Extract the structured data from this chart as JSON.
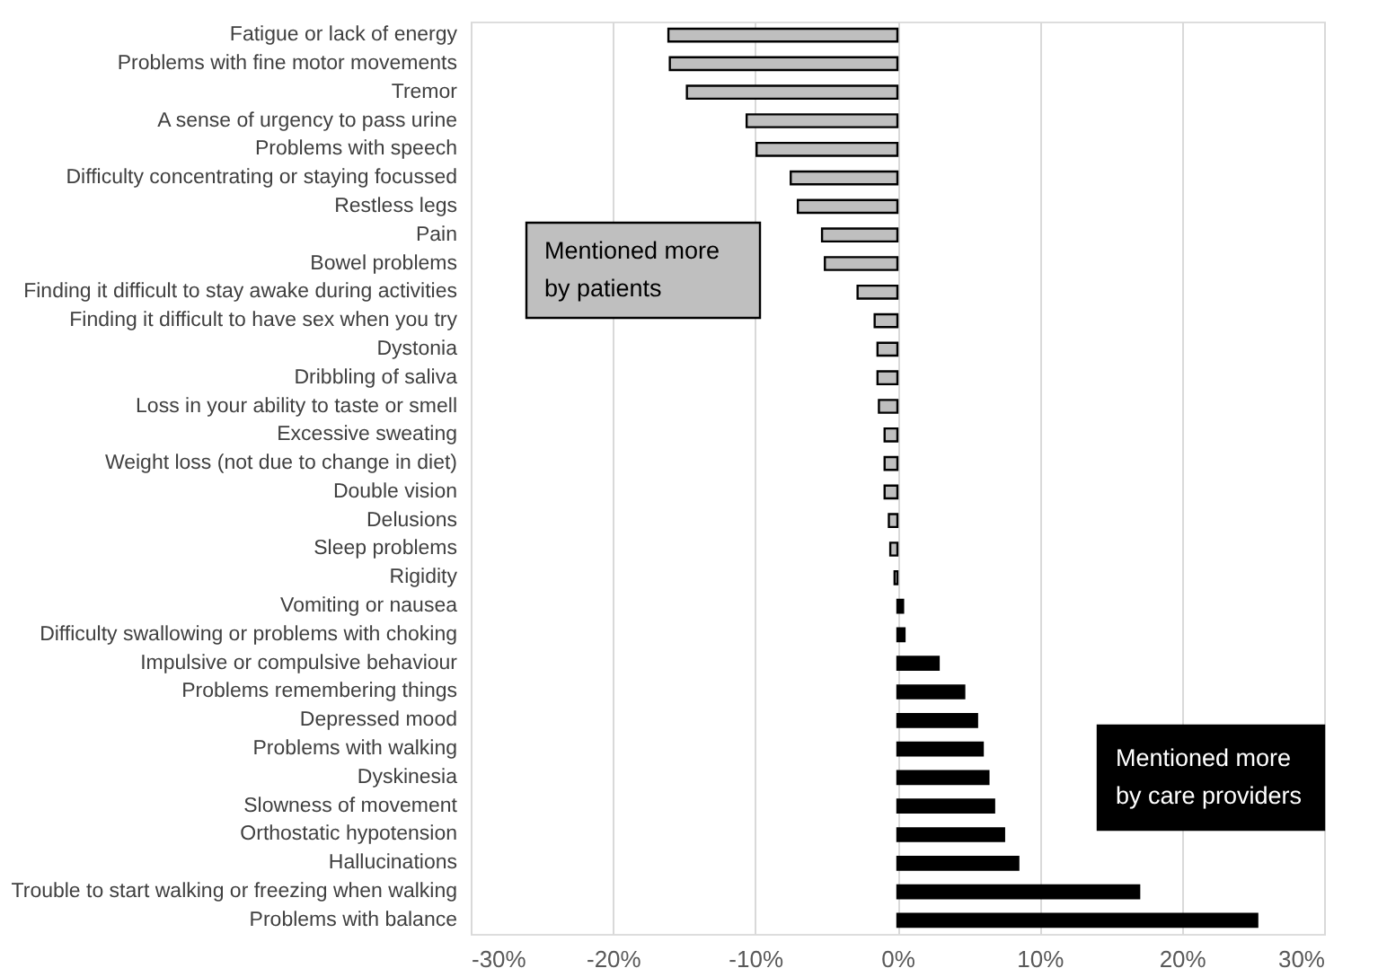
{
  "chart_data": {
    "type": "bar",
    "orientation": "horizontal",
    "categories": [
      "Fatigue or lack of energy",
      "Problems with fine motor movements",
      "Tremor",
      "A sense of urgency to pass urine",
      "Problems with speech",
      "Difficulty concentrating or staying focussed",
      "Restless legs",
      "Pain",
      "Bowel problems",
      "Finding it difficult to stay awake during activities",
      "Finding it difficult to have sex when you try",
      "Dystonia",
      "Dribbling of saliva",
      "Loss in your ability to taste or smell",
      "Excessive sweating",
      "Weight loss (not due to change in diet)",
      "Double vision",
      "Delusions",
      "Sleep problems",
      "Rigidity",
      "Vomiting or nausea",
      "Difficulty swallowing or problems with choking",
      "Impulsive or compulsive behaviour",
      "Problems remembering things",
      "Depressed mood",
      "Problems with walking",
      "Dyskinesia",
      "Slowness of movement",
      "Orthostatic hypotension",
      "Hallucinations",
      "Trouble to start walking or freezing when walking",
      "Problems with balance"
    ],
    "values": [
      -16.1,
      -16.0,
      -14.8,
      -10.6,
      -9.9,
      -7.5,
      -7.0,
      -5.3,
      -5.1,
      -2.8,
      -1.6,
      -1.4,
      -1.4,
      -1.3,
      -0.9,
      -0.9,
      -0.9,
      -0.6,
      -0.5,
      -0.2,
      0.4,
      0.5,
      2.9,
      4.7,
      5.6,
      6.0,
      6.4,
      6.8,
      7.5,
      8.5,
      17.0,
      25.3
    ],
    "colors": [
      "#bfbfbf",
      "#bfbfbf",
      "#bfbfbf",
      "#bfbfbf",
      "#bfbfbf",
      "#bfbfbf",
      "#bfbfbf",
      "#bfbfbf",
      "#bfbfbf",
      "#bfbfbf",
      "#bfbfbf",
      "#bfbfbf",
      "#bfbfbf",
      "#bfbfbf",
      "#bfbfbf",
      "#bfbfbf",
      "#bfbfbf",
      "#bfbfbf",
      "#bfbfbf",
      "#bfbfbf",
      "#000000",
      "#000000",
      "#000000",
      "#000000",
      "#000000",
      "#000000",
      "#000000",
      "#000000",
      "#000000",
      "#000000",
      "#000000",
      "#000000"
    ],
    "xlim": [
      -30,
      30
    ],
    "xticks": [
      {
        "value": -30,
        "label": "-30%"
      },
      {
        "value": -20,
        "label": "-20%"
      },
      {
        "value": -10,
        "label": "-10%"
      },
      {
        "value": 0,
        "label": "0%"
      },
      {
        "value": 10,
        "label": "10%"
      },
      {
        "value": 20,
        "label": "20%"
      },
      {
        "value": 30,
        "label": "30%"
      }
    ],
    "grid": "x",
    "annotations": [
      "Mentioned more by patients",
      "Mentioned more by care providers"
    ]
  }
}
